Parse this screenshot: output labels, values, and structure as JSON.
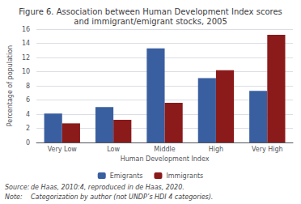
{
  "chart_data": {
    "type": "bar",
    "title": "Figure 6. Association between Human Development Index scores\nand immigrant/emigrant stocks, 2005",
    "categories": [
      "Very Low",
      "Low",
      "Middle",
      "High",
      "Very High"
    ],
    "series": [
      {
        "name": "Emigrants",
        "color": "#3a5fa0",
        "values": [
          4.1,
          5.0,
          13.3,
          9.1,
          7.3
        ]
      },
      {
        "name": "Immigrants",
        "color": "#8b1a1a",
        "values": [
          2.7,
          3.2,
          5.6,
          10.2,
          15.2
        ]
      }
    ],
    "xlabel": "Human Development Index",
    "ylabel": "Percentage of population",
    "ylim": [
      0,
      16
    ],
    "yticks": [
      0,
      2,
      4,
      6,
      8,
      10,
      12,
      14,
      16
    ],
    "grid": true,
    "legend": "bottom",
    "annotations": [
      [
        "Source:",
        "de Haas, 2010:4, reproduced in de Haas, 2020."
      ],
      [
        "Note:",
        "Categorization by author (not UNDP’s HDI 4 categories)."
      ]
    ]
  }
}
